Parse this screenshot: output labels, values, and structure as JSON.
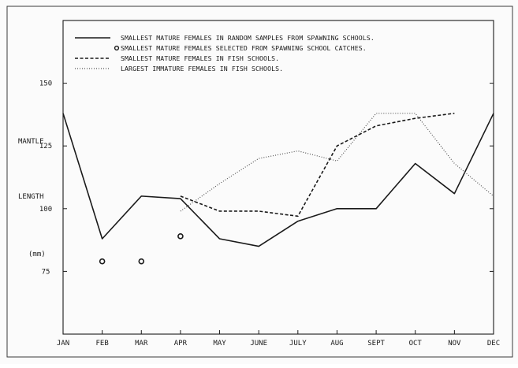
{
  "chart_data": {
    "type": "line",
    "categories": [
      "JAN",
      "FEB",
      "MAR",
      "APR",
      "MAY",
      "JUNE",
      "JULY",
      "AUG",
      "SEPT",
      "OCT",
      "NOV",
      "DEC"
    ],
    "ylabel_lines": [
      "MANTLE",
      "LENGTH",
      "(mm)"
    ],
    "y_ticks": [
      75,
      100,
      125,
      150
    ],
    "ylim": [
      50,
      175
    ],
    "grid": false,
    "legend_position": "top-left",
    "series": [
      {
        "name": "SMALLEST MATURE FEMALES IN RANDOM SAMPLES FROM SPAWNING SCHOOLS.",
        "style": "solid",
        "values": [
          138,
          88,
          105,
          104,
          88,
          85,
          95,
          100,
          100,
          118,
          106,
          138
        ]
      },
      {
        "name": "SMALLEST MATURE FEMALES SELECTED FROM SPAWNING SCHOOL CATCHES.",
        "style": "circles",
        "values": [
          null,
          79,
          79,
          89,
          null,
          null,
          null,
          null,
          null,
          null,
          null,
          null
        ]
      },
      {
        "name": "SMALLEST MATURE FEMALES IN FISH SCHOOLS.",
        "style": "dashed",
        "values": [
          null,
          null,
          null,
          105,
          99,
          99,
          97,
          125,
          133,
          136,
          138,
          null
        ]
      },
      {
        "name": "LARGEST IMMATURE FEMALES IN FISH SCHOOLS.",
        "style": "dotted",
        "values": [
          null,
          null,
          null,
          99,
          110,
          120,
          123,
          119,
          138,
          138,
          118,
          105
        ]
      }
    ]
  }
}
